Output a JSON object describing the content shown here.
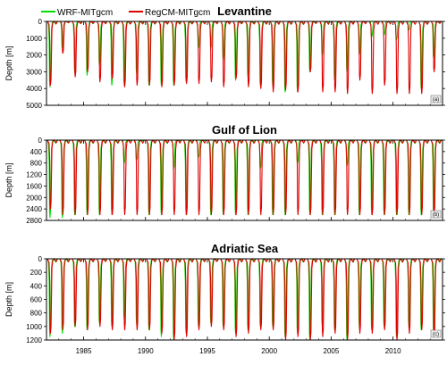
{
  "legend": [
    {
      "label": "WRF-MITgcm",
      "color": "#00e000"
    },
    {
      "label": "RegCM-MITgcm",
      "color": "#e00000"
    }
  ],
  "x_axis": {
    "range": [
      1982,
      2014
    ],
    "ticks": [
      1985,
      1990,
      1995,
      2000,
      2005,
      2010
    ]
  },
  "chart_data": [
    {
      "type": "line",
      "title": "Levantine",
      "ylabel": "Depth [m]",
      "panel_tag": "(a)",
      "ylim": [
        5000,
        0
      ],
      "yticks": [
        0,
        1000,
        2000,
        3000,
        4000,
        5000
      ],
      "x": [
        1982,
        1983,
        1984,
        1985,
        1986,
        1987,
        1988,
        1989,
        1990,
        1991,
        1992,
        1993,
        1994,
        1995,
        1996,
        1997,
        1998,
        1999,
        2000,
        2001,
        2002,
        2003,
        2004,
        2005,
        2006,
        2007,
        2008,
        2009,
        2010,
        2011,
        2012,
        2013
      ],
      "series": [
        {
          "name": "WRF-MITgcm",
          "color": "#00e000",
          "values": [
            3900,
            1600,
            3000,
            3200,
            2600,
            3800,
            3800,
            3100,
            3800,
            3800,
            3800,
            3600,
            1600,
            1600,
            2300,
            3500,
            3300,
            3800,
            3800,
            4200,
            4200,
            3000,
            2000,
            3500,
            3000,
            2000,
            900,
            800,
            1100,
            500,
            4000,
            2200
          ]
        },
        {
          "name": "RegCM-MITgcm",
          "color": "#e00000",
          "values": [
            3800,
            1900,
            3300,
            3000,
            3600,
            3400,
            3900,
            3800,
            3800,
            3900,
            3800,
            3700,
            3700,
            3600,
            3900,
            3400,
            3900,
            4000,
            4200,
            4100,
            4200,
            3000,
            4200,
            4200,
            4300,
            3500,
            4300,
            3800,
            4300,
            4300,
            4300,
            3000
          ]
        }
      ]
    },
    {
      "type": "line",
      "title": "Gulf of Lion",
      "ylabel": "Depth [m]",
      "panel_tag": "(b)",
      "ylim": [
        2800,
        0
      ],
      "yticks": [
        0,
        400,
        800,
        1200,
        1600,
        2000,
        2400,
        2800
      ],
      "x": [
        1982,
        1983,
        1984,
        1985,
        1986,
        1987,
        1988,
        1989,
        1990,
        1991,
        1992,
        1993,
        1994,
        1995,
        1996,
        1997,
        1998,
        1999,
        2000,
        2001,
        2002,
        2003,
        2004,
        2005,
        2006,
        2007,
        2008,
        2009,
        2010,
        2011,
        2012,
        2013
      ],
      "series": [
        {
          "name": "WRF-MITgcm",
          "color": "#00e000",
          "values": [
            2700,
            2700,
            2600,
            2600,
            2600,
            2600,
            800,
            700,
            2600,
            2600,
            1000,
            2600,
            600,
            2600,
            2600,
            2600,
            2600,
            1000,
            2600,
            2600,
            800,
            2600,
            2600,
            2600,
            900,
            2600,
            2600,
            2600,
            2600,
            2600,
            2600,
            2600
          ]
        },
        {
          "name": "RegCM-MITgcm",
          "color": "#e00000",
          "values": [
            2400,
            2600,
            2600,
            2600,
            2600,
            2600,
            2600,
            2600,
            2600,
            2600,
            2600,
            2600,
            2600,
            2600,
            2600,
            2600,
            2600,
            2600,
            2600,
            2600,
            2600,
            2600,
            2600,
            2600,
            2600,
            2600,
            2600,
            2600,
            2600,
            2600,
            2600,
            2600
          ]
        }
      ]
    },
    {
      "type": "line",
      "title": "Adriatic Sea",
      "ylabel": "Depth [m]",
      "panel_tag": "(c)",
      "ylim": [
        1200,
        0
      ],
      "yticks": [
        0,
        200,
        400,
        600,
        800,
        1000,
        1200
      ],
      "x": [
        1982,
        1983,
        1984,
        1985,
        1986,
        1987,
        1988,
        1989,
        1990,
        1991,
        1992,
        1993,
        1994,
        1995,
        1996,
        1997,
        1998,
        1999,
        2000,
        2001,
        2002,
        2003,
        2004,
        2005,
        2006,
        2007,
        2008,
        2009,
        2010,
        2011,
        2012,
        2013
      ],
      "series": [
        {
          "name": "WRF-MITgcm",
          "color": "#00e000",
          "values": [
            1150,
            1100,
            1000,
            1050,
            950,
            1000,
            900,
            950,
            1050,
            1150,
            1200,
            1100,
            1000,
            950,
            1000,
            1100,
            1050,
            1000,
            1000,
            1150,
            1100,
            1200,
            1000,
            1050,
            1200,
            1000,
            1050,
            1000,
            1150,
            1000,
            1050,
            1100
          ]
        },
        {
          "name": "RegCM-MITgcm",
          "color": "#e00000",
          "values": [
            1100,
            1050,
            1000,
            1050,
            1000,
            1050,
            1050,
            1050,
            1050,
            1100,
            1200,
            1150,
            1050,
            1000,
            1050,
            1150,
            1100,
            1050,
            1050,
            1200,
            1150,
            1200,
            1150,
            1100,
            1200,
            1100,
            1100,
            1050,
            1200,
            1100,
            1050,
            1150
          ]
        }
      ]
    }
  ]
}
